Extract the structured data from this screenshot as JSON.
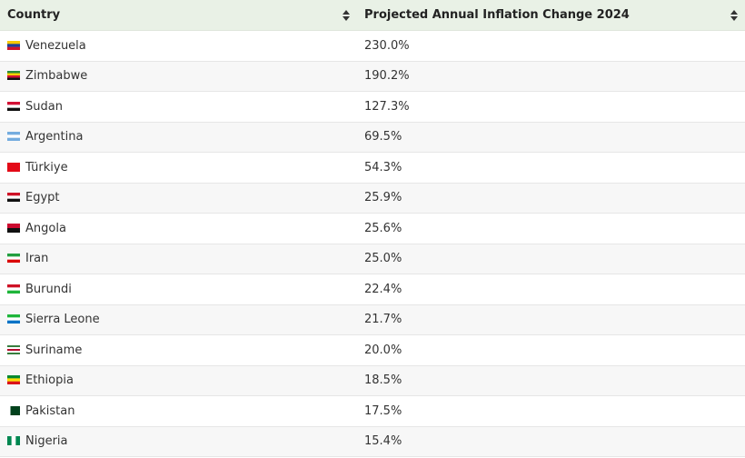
{
  "table": {
    "columns": [
      "Country",
      "Projected Annual Inflation Change 2024"
    ],
    "rows": [
      [
        "Venezuela",
        "230.0%"
      ],
      [
        "Zimbabwe",
        "190.2%"
      ],
      [
        "Sudan",
        "127.3%"
      ],
      [
        "Argentina",
        "69.5%"
      ],
      [
        "Türkiye",
        "54.3%"
      ],
      [
        "Egypt",
        "25.9%"
      ],
      [
        "Angola",
        "25.6%"
      ],
      [
        "Iran",
        "25.0%"
      ],
      [
        "Burundi",
        "22.4%"
      ],
      [
        "Sierra Leone",
        "21.7%"
      ],
      [
        "Suriname",
        "20.0%"
      ],
      [
        "Ethiopia",
        "18.5%"
      ],
      [
        "Pakistan",
        "17.5%"
      ],
      [
        "Nigeria",
        "15.4%"
      ]
    ]
  }
}
